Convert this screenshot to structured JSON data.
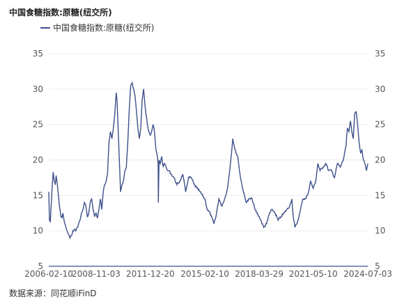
{
  "title": "中国食糖指数:原糖(纽交所)",
  "source": "数据来源：同花顺iFinD",
  "line_color": "#3d4f8a",
  "chart_data": {
    "type": "line",
    "title": "中国食糖指数:原糖(纽交所)",
    "xlabel": "",
    "ylabel": "",
    "ylim": [
      5,
      35
    ],
    "y_ticks": [
      5,
      10,
      15,
      20,
      25,
      30,
      35
    ],
    "x_tick_labels": [
      "2006-02-10",
      "2008-11-03",
      "2011-12-20",
      "2015-02-10",
      "2018-03-29",
      "2021-05-10",
      "2024-07-03"
    ],
    "x_range": [
      "2006-02-10",
      "2024-07-03"
    ],
    "legend_position": "top-left",
    "grid": true,
    "secondary_axis": true,
    "series": [
      {
        "name": "中国食糖指数:原糖(纽交所)",
        "x": [
          "2006-02-10",
          "2006-02-25",
          "2006-03-15",
          "2006-04-05",
          "2006-04-25",
          "2006-05-15",
          "2006-06-05",
          "2006-06-25",
          "2006-07-15",
          "2006-08-05",
          "2006-08-25",
          "2006-09-15",
          "2006-10-05",
          "2006-10-25",
          "2006-11-15",
          "2006-12-05",
          "2006-12-25",
          "2007-01-15",
          "2007-02-05",
          "2007-03-01",
          "2007-04-01",
          "2007-05-01",
          "2007-06-01",
          "2007-07-01",
          "2007-08-01",
          "2007-09-01",
          "2007-10-01",
          "2007-11-01",
          "2007-12-01",
          "2008-01-01",
          "2008-02-01",
          "2008-03-01",
          "2008-04-01",
          "2008-05-01",
          "2008-06-01",
          "2008-07-01",
          "2008-08-01",
          "2008-09-01",
          "2008-10-01",
          "2008-11-03",
          "2008-12-01",
          "2009-01-01",
          "2009-02-01",
          "2009-03-01",
          "2009-04-01",
          "2009-05-01",
          "2009-06-01",
          "2009-07-01",
          "2009-08-01",
          "2009-09-01",
          "2009-10-01",
          "2009-11-01",
          "2009-12-01",
          "2010-01-01",
          "2010-01-20",
          "2010-02-05",
          "2010-03-01",
          "2010-04-01",
          "2010-05-01",
          "2010-06-01",
          "2010-07-01",
          "2010-08-01",
          "2010-09-01",
          "2010-10-01",
          "2010-11-01",
          "2010-12-01",
          "2011-01-01",
          "2011-02-01",
          "2011-03-01",
          "2011-04-01",
          "2011-05-01",
          "2011-06-01",
          "2011-07-01",
          "2011-08-01",
          "2011-09-01",
          "2011-10-01",
          "2011-11-01",
          "2011-12-20",
          "2012-01-15",
          "2012-02-15",
          "2012-03-15",
          "2012-04-15",
          "2012-05-15",
          "2012-06-01",
          "2012-06-05",
          "2012-06-20",
          "2012-07-15",
          "2012-08-15",
          "2012-09-15",
          "2012-10-15",
          "2012-11-15",
          "2012-12-15",
          "2013-01-15",
          "2013-03-01",
          "2013-05-01",
          "2013-07-01",
          "2013-09-01",
          "2013-11-01",
          "2014-01-01",
          "2014-03-01",
          "2014-05-01",
          "2014-07-01",
          "2014-09-01",
          "2014-11-01",
          "2015-02-10",
          "2015-04-01",
          "2015-06-01",
          "2015-08-20",
          "2015-10-01",
          "2015-12-01",
          "2016-02-01",
          "2016-04-01",
          "2016-06-01",
          "2016-08-01",
          "2016-09-20",
          "2016-11-01",
          "2017-01-01",
          "2017-03-01",
          "2017-05-01",
          "2017-07-01",
          "2017-09-01",
          "2017-11-01",
          "2018-01-01",
          "2018-03-29",
          "2018-05-01",
          "2018-07-01",
          "2018-09-01",
          "2018-11-01",
          "2019-01-01",
          "2019-03-01",
          "2019-05-01",
          "2019-07-01",
          "2019-09-01",
          "2019-11-01",
          "2020-01-01",
          "2020-02-15",
          "2020-03-15",
          "2020-04-20",
          "2020-06-01",
          "2020-08-01",
          "2020-10-01",
          "2020-12-01",
          "2021-02-01",
          "2021-03-15",
          "2021-05-10",
          "2021-07-01",
          "2021-08-15",
          "2021-10-01",
          "2021-12-01",
          "2022-02-01",
          "2022-04-01",
          "2022-06-01",
          "2022-08-01",
          "2022-10-01",
          "2022-12-01",
          "2023-02-01",
          "2023-04-01",
          "2023-05-01",
          "2023-06-01",
          "2023-07-01",
          "2023-08-01",
          "2023-09-01",
          "2023-10-01",
          "2023-11-01",
          "2023-12-01",
          "2024-01-01",
          "2024-02-01",
          "2024-03-01",
          "2024-04-01",
          "2024-05-01",
          "2024-06-01",
          "2024-07-03"
        ],
        "values": [
          15.5,
          11.5,
          11.3,
          14.0,
          16.5,
          18.3,
          17.0,
          16.5,
          17.8,
          16.8,
          15.5,
          14.0,
          13.0,
          12.0,
          11.8,
          12.5,
          11.6,
          11.0,
          10.5,
          10.0,
          9.5,
          9.0,
          9.3,
          10.0,
          10.2,
          10.0,
          10.5,
          11.0,
          11.5,
          12.5,
          13.0,
          14.0,
          13.5,
          12.0,
          12.5,
          14.0,
          14.5,
          13.0,
          12.0,
          12.5,
          11.8,
          13.0,
          14.5,
          13.0,
          15.5,
          16.5,
          17.0,
          18.0,
          22.5,
          24.0,
          23.0,
          24.5,
          26.5,
          29.5,
          28.0,
          25.0,
          21.0,
          15.5,
          16.5,
          17.0,
          18.5,
          19.0,
          22.5,
          27.0,
          30.5,
          30.9,
          30.0,
          29.0,
          27.0,
          24.5,
          23.0,
          24.5,
          28.5,
          30.0,
          27.5,
          26.0,
          24.5,
          23.5,
          24.0,
          25.0,
          24.0,
          21.5,
          20.5,
          19.5,
          14.0,
          20.0,
          19.5,
          20.5,
          19.0,
          19.5,
          19.0,
          18.5,
          18.5,
          18.0,
          17.5,
          16.5,
          17.0,
          18.0,
          15.5,
          17.5,
          17.5,
          16.5,
          16.0,
          15.5,
          14.5,
          13.0,
          12.5,
          11.0,
          12.0,
          14.5,
          13.5,
          14.5,
          16.0,
          19.5,
          23.0,
          21.5,
          20.5,
          17.5,
          15.5,
          14.0,
          14.5,
          14.5,
          13.0,
          12.0,
          11.5,
          10.5,
          11.0,
          12.5,
          13.0,
          12.5,
          11.5,
          12.0,
          12.5,
          13.0,
          13.5,
          14.5,
          12.0,
          10.5,
          11.0,
          12.5,
          14.5,
          14.5,
          15.5,
          17.0,
          16.0,
          17.0,
          19.5,
          18.5,
          19.0,
          19.5,
          18.5,
          18.5,
          17.5,
          19.5,
          19.0,
          20.0,
          22.0,
          24.5,
          24.0,
          25.5,
          24.0,
          23.0,
          26.5,
          26.8,
          25.0,
          22.5,
          21.0,
          21.5,
          20.0,
          19.5,
          18.5,
          19.5
        ]
      }
    ]
  }
}
